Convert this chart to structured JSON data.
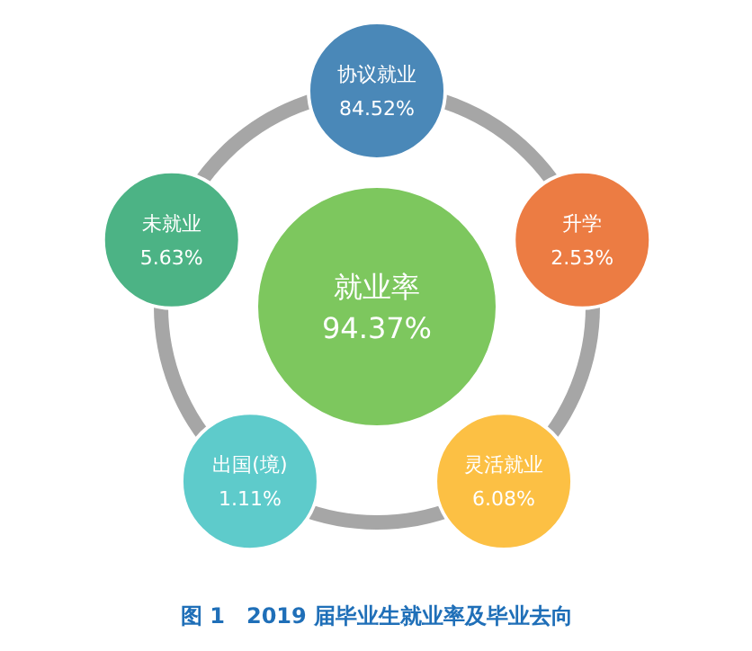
{
  "chart_data": {
    "type": "other",
    "title": "图 1　2019 届毕业生就业率及毕业去向",
    "categories": [
      "就业率",
      "协议就业",
      "升学",
      "灵活就业",
      "出国(境)",
      "未就业"
    ],
    "values": [
      94.37,
      84.52,
      2.53,
      6.08,
      1.11,
      5.63
    ],
    "value_labels": [
      "94.37%",
      "84.52%",
      "2.53%",
      "6.08%",
      "1.11%",
      "5.63%"
    ],
    "colors": [
      "#7dc75e",
      "#4a88b8",
      "#ec7c43",
      "#fcc044",
      "#5ecbcb",
      "#4cb385"
    ]
  }
}
